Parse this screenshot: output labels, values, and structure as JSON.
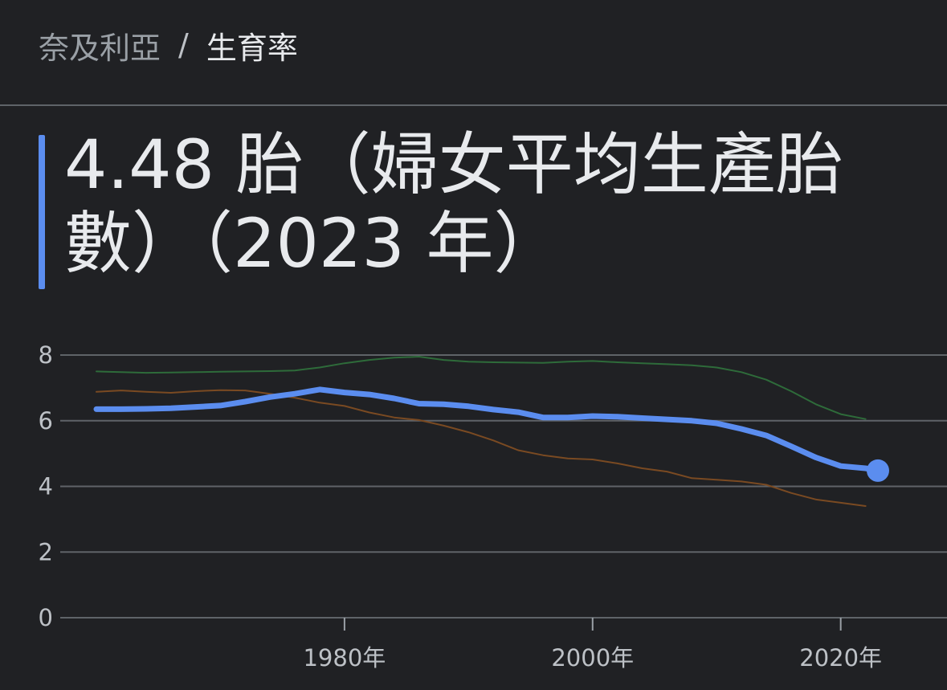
{
  "breadcrumb": {
    "country": "奈及利亞",
    "separator": "/",
    "current": "生育率"
  },
  "headline": "4.48 胎（婦女平均生產胎數）（2023 年）",
  "colors": {
    "background": "#202124",
    "accent": "#5b8def",
    "series_main": "#5b8def",
    "series_green": "#2e6b3a",
    "series_brown": "#7a4a22",
    "gridline": "#5f6368"
  },
  "chart_data": {
    "type": "line",
    "ylim": [
      0,
      8
    ],
    "xlim": [
      1958,
      2027
    ],
    "y_ticks": [
      "0",
      "2",
      "4",
      "6",
      "8"
    ],
    "x_ticks": [
      {
        "value": 1980,
        "label": "1980年"
      },
      {
        "value": 2000,
        "label": "2000年"
      },
      {
        "value": 2020,
        "label": "2020年"
      }
    ],
    "grid": true,
    "series": [
      {
        "color": "#2e6b3a",
        "width": 2,
        "x": [
          1960,
          1962,
          1964,
          1966,
          1968,
          1970,
          1972,
          1974,
          1976,
          1978,
          1980,
          1982,
          1984,
          1986,
          1988,
          1990,
          1992,
          1994,
          1996,
          1998,
          2000,
          2002,
          2004,
          2006,
          2008,
          2010,
          2012,
          2014,
          2016,
          2018,
          2020,
          2022
        ],
        "y": [
          7.5,
          7.48,
          7.46,
          7.47,
          7.48,
          7.49,
          7.5,
          7.51,
          7.53,
          7.62,
          7.75,
          7.85,
          7.92,
          7.95,
          7.85,
          7.8,
          7.78,
          7.77,
          7.76,
          7.8,
          7.82,
          7.78,
          7.75,
          7.72,
          7.69,
          7.62,
          7.48,
          7.25,
          6.9,
          6.5,
          6.2,
          6.05
        ]
      },
      {
        "color": "#7a4a22",
        "width": 2,
        "x": [
          1960,
          1962,
          1964,
          1966,
          1968,
          1970,
          1972,
          1974,
          1976,
          1978,
          1980,
          1982,
          1984,
          1986,
          1988,
          1990,
          1992,
          1994,
          1996,
          1998,
          2000,
          2002,
          2004,
          2006,
          2008,
          2010,
          2012,
          2014,
          2016,
          2018,
          2020,
          2022
        ],
        "y": [
          6.88,
          6.92,
          6.88,
          6.85,
          6.9,
          6.93,
          6.92,
          6.82,
          6.7,
          6.55,
          6.45,
          6.25,
          6.1,
          6.02,
          5.85,
          5.65,
          5.4,
          5.1,
          4.95,
          4.85,
          4.82,
          4.7,
          4.55,
          4.45,
          4.25,
          4.2,
          4.15,
          4.05,
          3.8,
          3.6,
          3.5,
          3.4
        ]
      },
      {
        "color": "#5b8def",
        "width": 7,
        "x": [
          1960,
          1962,
          1964,
          1966,
          1968,
          1970,
          1972,
          1974,
          1976,
          1978,
          1980,
          1982,
          1984,
          1986,
          1988,
          1990,
          1992,
          1994,
          1996,
          1998,
          2000,
          2002,
          2004,
          2006,
          2008,
          2010,
          2012,
          2014,
          2016,
          2018,
          2020,
          2022,
          2023
        ],
        "y": [
          6.35,
          6.35,
          6.36,
          6.38,
          6.42,
          6.46,
          6.58,
          6.72,
          6.82,
          6.95,
          6.86,
          6.8,
          6.68,
          6.52,
          6.5,
          6.44,
          6.34,
          6.26,
          6.1,
          6.1,
          6.14,
          6.12,
          6.08,
          6.04,
          6.0,
          5.92,
          5.75,
          5.55,
          5.22,
          4.88,
          4.62,
          4.55,
          4.48
        ]
      }
    ],
    "highlight": {
      "x": 2023,
      "y": 4.48,
      "color": "#5b8def"
    }
  }
}
